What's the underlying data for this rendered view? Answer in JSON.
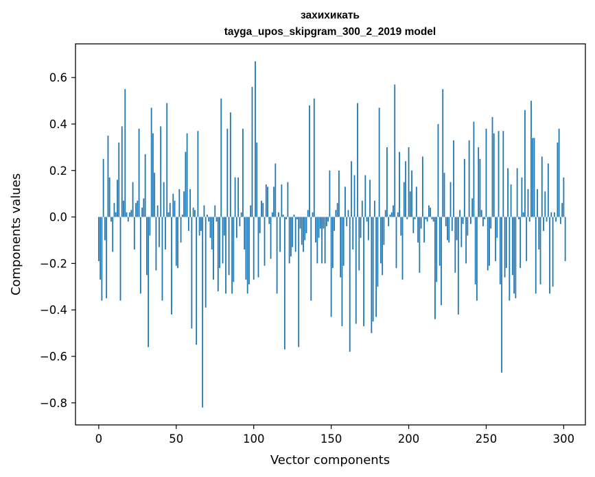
{
  "chart_data": {
    "type": "bar",
    "title": "захихикать",
    "subtitle": "tayga_upos_skipgram_300_2_2019 model",
    "xlabel": "Vector components",
    "ylabel": "Components values",
    "xlim": [
      -15,
      314
    ],
    "ylim": [
      -0.895,
      0.745
    ],
    "xticks": [
      0,
      50,
      100,
      150,
      200,
      250,
      300
    ],
    "yticks": [
      -0.8,
      -0.6,
      -0.4,
      -0.2,
      0.0,
      0.2,
      0.4,
      0.6
    ],
    "ytick_labels": [
      "−0.8",
      "−0.6",
      "−0.4",
      "−0.2",
      "0.0",
      "0.2",
      "0.4",
      "0.6"
    ],
    "bar_color": "#1f77b4",
    "grid": false,
    "values": [
      -0.19,
      -0.27,
      -0.36,
      0.25,
      -0.1,
      -0.35,
      0.35,
      0.17,
      -0.02,
      -0.15,
      0.06,
      0.02,
      0.16,
      0.32,
      -0.36,
      0.39,
      0.07,
      0.55,
      0.02,
      -0.02,
      0.02,
      0.03,
      0.15,
      -0.14,
      0.06,
      0.07,
      0.38,
      -0.33,
      0.04,
      0.08,
      0.27,
      -0.25,
      -0.56,
      -0.08,
      0.47,
      0.36,
      0.19,
      -0.23,
      0.05,
      -0.13,
      0.39,
      -0.36,
      0.15,
      -0.14,
      0.49,
      0.02,
      0.06,
      -0.42,
      0.1,
      0.07,
      -0.21,
      -0.22,
      0.12,
      -0.11,
      0.01,
      0.11,
      0.28,
      0.36,
      -0.06,
      0.12,
      -0.48,
      0.04,
      0.03,
      -0.55,
      0.37,
      -0.08,
      -0.06,
      -0.82,
      0.05,
      -0.39,
      0.01,
      -0.02,
      -0.09,
      -0.14,
      -0.27,
      0.05,
      -0.02,
      -0.32,
      -0.22,
      0.51,
      -0.2,
      -0.08,
      -0.33,
      0.38,
      -0.25,
      0.45,
      -0.33,
      -0.28,
      0.17,
      -0.09,
      0.17,
      -0.04,
      0.02,
      0.38,
      -0.14,
      -0.27,
      -0.33,
      -0.29,
      0.05,
      0.56,
      -0.27,
      0.67,
      0.32,
      -0.26,
      -0.07,
      0.07,
      0.06,
      -0.21,
      0.14,
      0.13,
      -0.03,
      -0.18,
      0.02,
      0.13,
      0.23,
      -0.33,
      0.02,
      -0.15,
      0.14,
      0.01,
      -0.57,
      -0.01,
      0.15,
      -0.2,
      -0.17,
      -0.13,
      0.01,
      -0.15,
      -0.01,
      -0.56,
      -0.05,
      -0.12,
      -0.15,
      -0.1,
      -0.07,
      0.03,
      0.48,
      -0.36,
      0.02,
      0.51,
      -0.11,
      -0.2,
      -0.09,
      -0.05,
      -0.2,
      -0.05,
      -0.2,
      -0.04,
      -0.02,
      0.2,
      -0.43,
      -0.22,
      -0.06,
      0.03,
      0.06,
      0.2,
      -0.26,
      -0.47,
      -0.21,
      0.13,
      -0.04,
      0.03,
      -0.58,
      0.24,
      -0.14,
      0.18,
      -0.46,
      0.49,
      -0.23,
      -0.09,
      0.07,
      -0.47,
      0.18,
      -0.02,
      -0.1,
      0.16,
      -0.5,
      -0.45,
      0.07,
      -0.43,
      -0.3,
      0.47,
      -0.2,
      -0.25,
      -0.12,
      0.03,
      0.3,
      -0.04,
      0.01,
      0.02,
      0.05,
      0.57,
      -0.22,
      0.02,
      0.28,
      -0.08,
      -0.27,
      0.15,
      0.24,
      -0.01,
      0.3,
      0.11,
      0.2,
      -0.07,
      -0.01,
      0.13,
      -0.11,
      -0.24,
      -0.05,
      0.26,
      -0.11,
      -0.01,
      -0.02,
      0.05,
      0.04,
      -0.01,
      -0.02,
      -0.44,
      -0.28,
      0.4,
      -0.21,
      -0.38,
      0.55,
      0.19,
      -0.04,
      -0.1,
      -0.11,
      0.15,
      -0.06,
      0.33,
      -0.24,
      -0.1,
      -0.42,
      0.03,
      -0.13,
      -0.03,
      0.25,
      -0.2,
      -0.08,
      0.33,
      -0.03,
      0.08,
      0.41,
      -0.29,
      -0.36,
      0.3,
      0.25,
      0.03,
      -0.04,
      -0.01,
      0.38,
      -0.23,
      -0.21,
      -0.05,
      0.43,
      0.36,
      -0.19,
      -0.09,
      0.37,
      -0.29,
      -0.67,
      0.37,
      -0.26,
      -0.22,
      0.21,
      -0.36,
      0.14,
      -0.25,
      -0.33,
      -0.35,
      0.21,
      -0.01,
      -0.22,
      0.17,
      0.02,
      0.46,
      -0.19,
      0.12,
      -0.02,
      0.5,
      0.34,
      0.34,
      -0.33,
      0.12,
      -0.14,
      -0.29,
      0.26,
      -0.06,
      0.11,
      -0.02,
      0.23,
      -0.33,
      0.02,
      -0.3,
      0.02,
      -0.02,
      0.32,
      0.38,
      -0.03,
      0.06,
      0.17,
      -0.19,
      0.0,
      0.0
    ]
  }
}
